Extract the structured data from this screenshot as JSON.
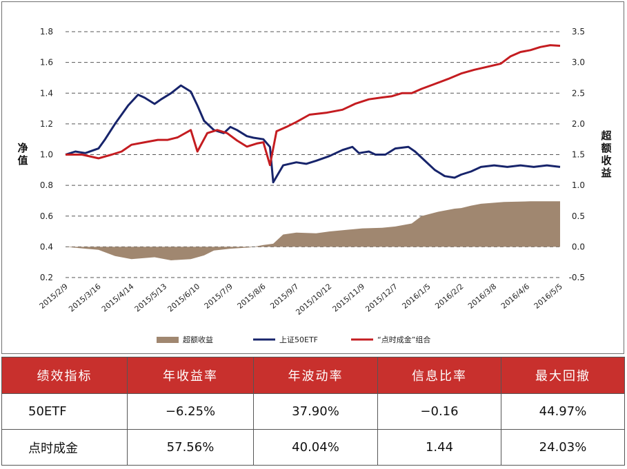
{
  "chart_data": {
    "type": "line",
    "left_axis": {
      "label": "净值",
      "ticks": [
        "1.8",
        "1.6",
        "1.4",
        "1.2",
        "1.0",
        "0.8",
        "0.6",
        "0.4",
        "0.2"
      ],
      "ylim": [
        0.2,
        1.8
      ]
    },
    "right_axis": {
      "label": "超额收益",
      "ticks": [
        "3.5",
        "3.0",
        "2.5",
        "2.0",
        "1.5",
        "1.0",
        "0.5",
        "0.0",
        "-0.5"
      ],
      "ylim": [
        -0.5,
        3.5
      ]
    },
    "x_ticks": [
      "2015/2/9",
      "2015/3/16",
      "2015/4/14",
      "2015/5/13",
      "2015/6/10",
      "2015/7/9",
      "2015/8/6",
      "2015/9/7",
      "2015/10/12",
      "2015/11/9",
      "2015/12/7",
      "2016/1/5",
      "2016/2/2",
      "2016/3/8",
      "2016/4/6",
      "2016/5/5"
    ],
    "grid": "horizontal dashed",
    "legend_position": "bottom",
    "series": [
      {
        "name": "超额收益",
        "kind": "area",
        "axis": "right",
        "color": "#a08770",
        "points": [
          [
            0,
            0.0
          ],
          [
            0.06,
            -0.03
          ],
          [
            0.1,
            -0.05
          ],
          [
            0.15,
            -0.15
          ],
          [
            0.2,
            -0.2
          ],
          [
            0.27,
            -0.17
          ],
          [
            0.32,
            -0.22
          ],
          [
            0.38,
            -0.2
          ],
          [
            0.42,
            -0.14
          ],
          [
            0.45,
            -0.06
          ],
          [
            0.5,
            -0.03
          ],
          [
            0.56,
            -0.01
          ],
          [
            0.6,
            0.03
          ],
          [
            0.63,
            0.05
          ],
          [
            0.66,
            0.2
          ],
          [
            0.7,
            0.23
          ],
          [
            0.76,
            0.22
          ],
          [
            0.8,
            0.25
          ],
          [
            0.86,
            0.28
          ],
          [
            0.9,
            0.3
          ],
          [
            0.96,
            0.31
          ],
          [
            1.0,
            0.33
          ],
          [
            1.05,
            0.38
          ],
          [
            1.08,
            0.5
          ],
          [
            1.13,
            0.57
          ],
          [
            1.18,
            0.62
          ],
          [
            1.2,
            0.63
          ],
          [
            1.23,
            0.67
          ],
          [
            1.26,
            0.7
          ],
          [
            1.33,
            0.73
          ],
          [
            1.41,
            0.74
          ],
          [
            1.5,
            0.74
          ]
        ]
      },
      {
        "name": "上证50ETF",
        "kind": "line",
        "axis": "left",
        "color": "#17246b",
        "points": [
          [
            0,
            1.0
          ],
          [
            0.03,
            1.02
          ],
          [
            0.06,
            1.01
          ],
          [
            0.1,
            1.04
          ],
          [
            0.12,
            1.1
          ],
          [
            0.15,
            1.2
          ],
          [
            0.19,
            1.32
          ],
          [
            0.22,
            1.39
          ],
          [
            0.24,
            1.37
          ],
          [
            0.27,
            1.33
          ],
          [
            0.29,
            1.36
          ],
          [
            0.32,
            1.4
          ],
          [
            0.35,
            1.45
          ],
          [
            0.38,
            1.41
          ],
          [
            0.4,
            1.32
          ],
          [
            0.42,
            1.22
          ],
          [
            0.45,
            1.16
          ],
          [
            0.48,
            1.14
          ],
          [
            0.5,
            1.18
          ],
          [
            0.52,
            1.16
          ],
          [
            0.55,
            1.12
          ],
          [
            0.57,
            1.11
          ],
          [
            0.6,
            1.1
          ],
          [
            0.62,
            1.05
          ],
          [
            0.63,
            0.82
          ],
          [
            0.66,
            0.93
          ],
          [
            0.7,
            0.95
          ],
          [
            0.73,
            0.94
          ],
          [
            0.76,
            0.96
          ],
          [
            0.8,
            0.99
          ],
          [
            0.84,
            1.03
          ],
          [
            0.87,
            1.05
          ],
          [
            0.89,
            1.01
          ],
          [
            0.92,
            1.02
          ],
          [
            0.94,
            1.0
          ],
          [
            0.97,
            1.0
          ],
          [
            1.0,
            1.04
          ],
          [
            1.04,
            1.05
          ],
          [
            1.06,
            1.02
          ],
          [
            1.09,
            0.96
          ],
          [
            1.12,
            0.9
          ],
          [
            1.15,
            0.86
          ],
          [
            1.18,
            0.85
          ],
          [
            1.2,
            0.87
          ],
          [
            1.23,
            0.89
          ],
          [
            1.26,
            0.92
          ],
          [
            1.3,
            0.93
          ],
          [
            1.34,
            0.92
          ],
          [
            1.38,
            0.93
          ],
          [
            1.42,
            0.92
          ],
          [
            1.46,
            0.93
          ],
          [
            1.5,
            0.92
          ]
        ]
      },
      {
        "name": "“点时成金”组合",
        "kind": "line",
        "axis": "right",
        "color": "#c41c20",
        "points": [
          [
            0,
            1.5
          ],
          [
            0.05,
            1.5
          ],
          [
            0.1,
            1.44
          ],
          [
            0.14,
            1.5
          ],
          [
            0.17,
            1.55
          ],
          [
            0.2,
            1.66
          ],
          [
            0.24,
            1.7
          ],
          [
            0.28,
            1.74
          ],
          [
            0.31,
            1.74
          ],
          [
            0.34,
            1.78
          ],
          [
            0.38,
            1.9
          ],
          [
            0.4,
            1.55
          ],
          [
            0.43,
            1.85
          ],
          [
            0.46,
            1.9
          ],
          [
            0.49,
            1.85
          ],
          [
            0.52,
            1.73
          ],
          [
            0.55,
            1.63
          ],
          [
            0.58,
            1.68
          ],
          [
            0.6,
            1.7
          ],
          [
            0.62,
            1.33
          ],
          [
            0.64,
            1.88
          ],
          [
            0.67,
            1.95
          ],
          [
            0.7,
            2.03
          ],
          [
            0.74,
            2.15
          ],
          [
            0.79,
            2.18
          ],
          [
            0.84,
            2.23
          ],
          [
            0.88,
            2.33
          ],
          [
            0.92,
            2.4
          ],
          [
            0.96,
            2.43
          ],
          [
            0.99,
            2.45
          ],
          [
            1.02,
            2.5
          ],
          [
            1.05,
            2.5
          ],
          [
            1.08,
            2.57
          ],
          [
            1.12,
            2.65
          ],
          [
            1.16,
            2.73
          ],
          [
            1.2,
            2.82
          ],
          [
            1.24,
            2.88
          ],
          [
            1.28,
            2.93
          ],
          [
            1.32,
            2.98
          ],
          [
            1.35,
            3.1
          ],
          [
            1.38,
            3.17
          ],
          [
            1.41,
            3.2
          ],
          [
            1.44,
            3.25
          ],
          [
            1.47,
            3.28
          ],
          [
            1.5,
            3.27
          ]
        ]
      }
    ]
  },
  "legend": [
    {
      "label": "超额收益",
      "kind": "area",
      "color": "#a08770"
    },
    {
      "label": "上证50ETF",
      "kind": "line",
      "color": "#17246b"
    },
    {
      "label": "“点时成金”组合",
      "kind": "line",
      "color": "#c41c20"
    }
  ],
  "table": {
    "headers": [
      "绩效指标",
      "年收益率",
      "年波动率",
      "信息比率",
      "最大回撤"
    ],
    "rows": [
      [
        "50ETF",
        "−6.25%",
        "37.90%",
        "−0.16",
        "44.97%"
      ],
      [
        "点时成金",
        "57.56%",
        "40.04%",
        "1.44",
        "24.03%"
      ]
    ],
    "header_color": "#c8302d"
  }
}
